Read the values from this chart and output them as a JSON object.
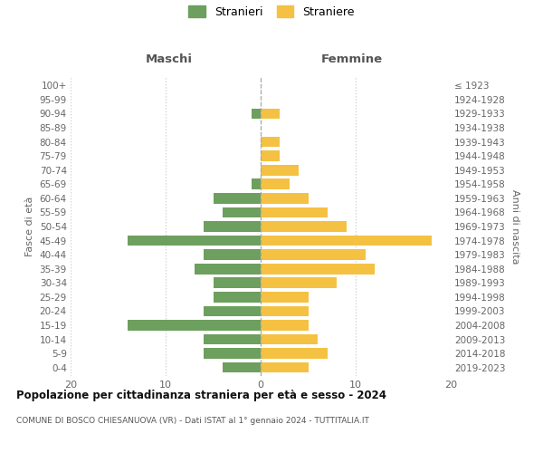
{
  "age_groups": [
    "100+",
    "95-99",
    "90-94",
    "85-89",
    "80-84",
    "75-79",
    "70-74",
    "65-69",
    "60-64",
    "55-59",
    "50-54",
    "45-49",
    "40-44",
    "35-39",
    "30-34",
    "25-29",
    "20-24",
    "15-19",
    "10-14",
    "5-9",
    "0-4"
  ],
  "birth_years": [
    "≤ 1923",
    "1924-1928",
    "1929-1933",
    "1934-1938",
    "1939-1943",
    "1944-1948",
    "1949-1953",
    "1954-1958",
    "1959-1963",
    "1964-1968",
    "1969-1973",
    "1974-1978",
    "1979-1983",
    "1984-1988",
    "1989-1993",
    "1994-1998",
    "1999-2003",
    "2004-2008",
    "2009-2013",
    "2014-2018",
    "2019-2023"
  ],
  "maschi": [
    0,
    0,
    1,
    0,
    0,
    0,
    0,
    1,
    5,
    4,
    6,
    14,
    6,
    7,
    5,
    5,
    6,
    14,
    6,
    6,
    4
  ],
  "femmine": [
    0,
    0,
    2,
    0,
    2,
    2,
    4,
    3,
    5,
    7,
    9,
    18,
    11,
    12,
    8,
    5,
    5,
    5,
    6,
    7,
    5
  ],
  "maschi_color": "#6d9f5e",
  "femmine_color": "#f5c142",
  "background_color": "#ffffff",
  "grid_color": "#cccccc",
  "title": "Popolazione per cittadinanza straniera per età e sesso - 2024",
  "subtitle": "COMUNE DI BOSCO CHIESANUOVA (VR) - Dati ISTAT al 1° gennaio 2024 - TUTTITALIA.IT",
  "xlabel_left": "Maschi",
  "xlabel_right": "Femmine",
  "ylabel_left": "Fasce di età",
  "ylabel_right": "Anni di nascita",
  "xlim": 20,
  "legend_stranieri": "Stranieri",
  "legend_straniere": "Straniere",
  "bar_height": 0.75
}
